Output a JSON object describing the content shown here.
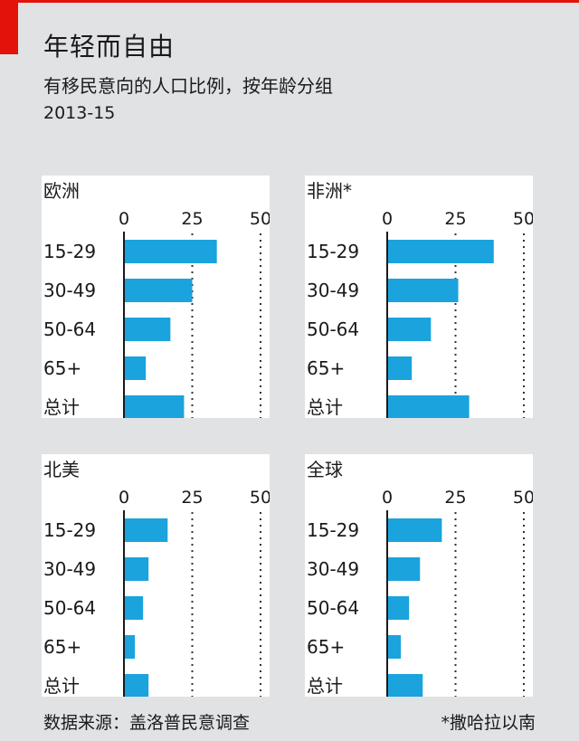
{
  "header": {
    "title": "年轻而自由",
    "subtitle": "有移民意向的人口比例，按年龄分组",
    "period": "2013-15"
  },
  "footer": {
    "source": "数据来源：盖洛普民意调查",
    "note": "*撒哈拉以南"
  },
  "colors": {
    "bar": "#1aa3dd",
    "background": "#e1e2e4",
    "panel": "#ffffff",
    "accent": "#e3120b"
  },
  "chart_data": [
    {
      "type": "bar",
      "orientation": "horizontal",
      "title": "欧洲",
      "categories": [
        "15-29",
        "30-49",
        "50-64",
        "65+",
        "总计"
      ],
      "values": [
        34,
        25,
        17,
        8,
        22
      ],
      "xlim": [
        0,
        50
      ],
      "ticks": [
        "0",
        "25",
        "50"
      ],
      "grid": true
    },
    {
      "type": "bar",
      "orientation": "horizontal",
      "title": "非洲*",
      "categories": [
        "15-29",
        "30-49",
        "50-64",
        "65+",
        "总计"
      ],
      "values": [
        39,
        26,
        16,
        9,
        30
      ],
      "xlim": [
        0,
        50
      ],
      "ticks": [
        "0",
        "25",
        "50"
      ],
      "grid": true
    },
    {
      "type": "bar",
      "orientation": "horizontal",
      "title": "北美",
      "categories": [
        "15-29",
        "30-49",
        "50-64",
        "65+",
        "总计"
      ],
      "values": [
        16,
        9,
        7,
        4,
        9
      ],
      "xlim": [
        0,
        50
      ],
      "ticks": [
        "0",
        "25",
        "50"
      ],
      "grid": true
    },
    {
      "type": "bar",
      "orientation": "horizontal",
      "title": "全球",
      "categories": [
        "15-29",
        "30-49",
        "50-64",
        "65+",
        "总计"
      ],
      "values": [
        20,
        12,
        8,
        5,
        13
      ],
      "xlim": [
        0,
        50
      ],
      "ticks": [
        "0",
        "25",
        "50"
      ],
      "grid": true
    }
  ]
}
